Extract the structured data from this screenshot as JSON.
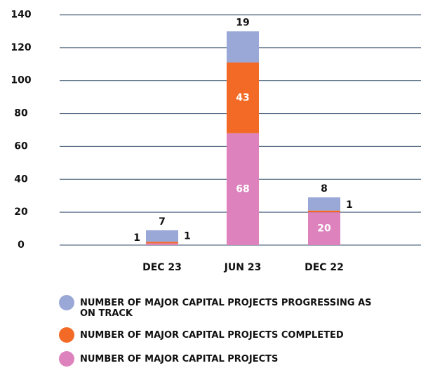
{
  "chart_data": {
    "type": "bar",
    "stacked": true,
    "categories": [
      "DEC 23",
      "JUN 23",
      "DEC 22"
    ],
    "series": [
      {
        "name": "NUMBER OF MAJOR CAPITAL PROJECTS",
        "color": "#dd82bd",
        "values": [
          1,
          68,
          20
        ]
      },
      {
        "name": "NUMBER OF MAJOR CAPITAL PROJECTS COMPLETED",
        "color": "#f26a25",
        "values": [
          1,
          43,
          1
        ]
      },
      {
        "name": "NUMBER OF MAJOR CAPITAL PROJECTS PROGRESSING AS ON TRACK",
        "color": "#9aa8d8",
        "values": [
          7,
          19,
          8
        ]
      }
    ],
    "ylim": [
      0,
      140
    ],
    "yticks": [
      0,
      20,
      40,
      60,
      80,
      100,
      120,
      140
    ],
    "grid": true
  }
}
